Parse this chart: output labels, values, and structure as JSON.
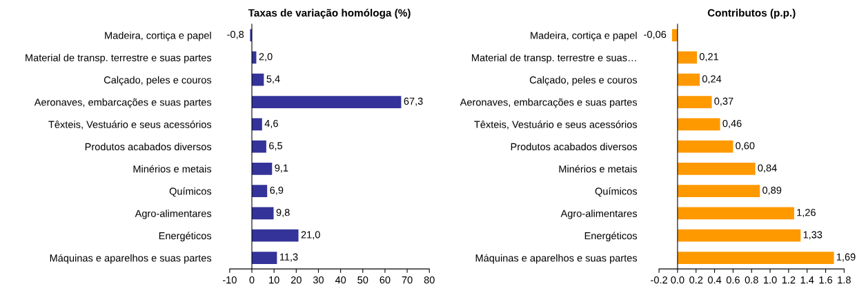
{
  "chart_data": [
    {
      "type": "bar",
      "orientation": "horizontal",
      "title": "Taxas de variação homóloga (%)",
      "categories": [
        "Madeira, cortiça e papel",
        "Material de transp. terrestre e suas partes",
        "Calçado, peles e couros",
        "Aeronaves, embarcações e suas partes",
        "Têxteis, Vestuário e seus acessórios",
        "Produtos acabados diversos",
        "Minérios e metais",
        "Químicos",
        "Agro-alimentares",
        "Energéticos",
        "Máquinas e aparelhos e suas partes"
      ],
      "values": [
        -0.8,
        2.0,
        5.4,
        67.3,
        4.6,
        6.5,
        9.1,
        6.9,
        9.8,
        21.0,
        11.3
      ],
      "value_labels": [
        "-0,8",
        "2,0",
        "5,4",
        "67,3",
        "4,6",
        "6,5",
        "9,1",
        "6,9",
        "9,8",
        "21,0",
        "11,3"
      ],
      "color": "#333399",
      "xlim": [
        -10,
        80
      ],
      "xticks": [
        -10,
        0,
        10,
        20,
        30,
        40,
        50,
        60,
        70,
        80
      ],
      "legend": false
    },
    {
      "type": "bar",
      "orientation": "horizontal",
      "title": "Contributos (p.p.)",
      "categories": [
        "Madeira, cortiça e papel",
        "Material de transp. terrestre e suas…",
        "Calçado, peles e couros",
        "Aeronaves, embarcações e suas partes",
        "Têxteis, Vestuário e seus acessórios",
        "Produtos acabados diversos",
        "Minérios e metais",
        "Químicos",
        "Agro-alimentares",
        "Energéticos",
        "Máquinas e aparelhos e suas partes"
      ],
      "values": [
        -0.06,
        0.21,
        0.24,
        0.37,
        0.46,
        0.6,
        0.84,
        0.89,
        1.26,
        1.33,
        1.69
      ],
      "value_labels": [
        "-0,06",
        "0,21",
        "0,24",
        "0,37",
        "0,46",
        "0,60",
        "0,84",
        "0,89",
        "1,26",
        "1,33",
        "1,69"
      ],
      "color": "#ff9900",
      "xlim": [
        -0.2,
        1.8
      ],
      "xticks": [
        {
          "value": -0.2,
          "label": "-0.2"
        },
        {
          "value": 0.0,
          "label": "0.0"
        },
        {
          "value": 0.2,
          "label": "0.2"
        },
        {
          "value": 0.4,
          "label": "0.4"
        },
        {
          "value": 0.6,
          "label": "0.6"
        },
        {
          "value": 0.8,
          "label": "0.8"
        },
        {
          "value": 1.0,
          "label": "1.0"
        },
        {
          "value": 1.2,
          "label": "1.2"
        },
        {
          "value": 1.4,
          "label": "1.4"
        },
        {
          "value": 1.6,
          "label": "1.6"
        },
        {
          "value": 1.8,
          "label": "1.8"
        }
      ],
      "legend": false
    }
  ]
}
